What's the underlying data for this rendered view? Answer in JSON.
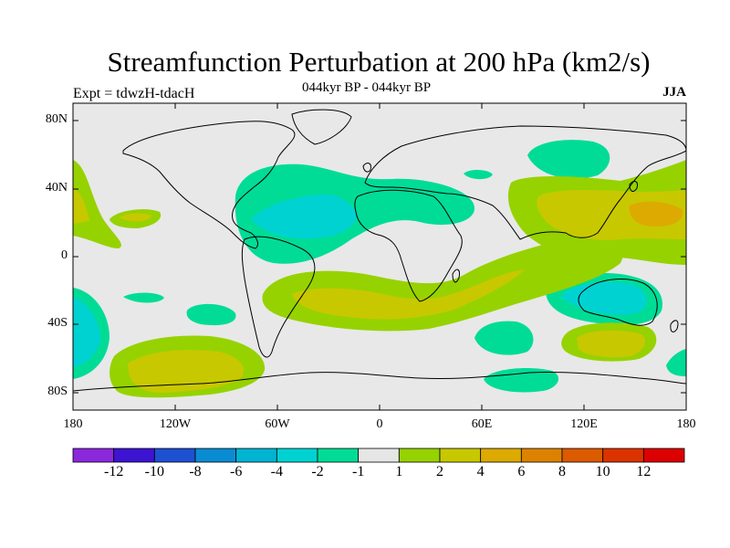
{
  "title": "Streamfunction Perturbation at 200 hPa (km2/s)",
  "subtitle": "044kyr BP - 044kyr BP",
  "experiment": "Expt = tdwzH-tdacH",
  "season": "JJA",
  "colors": {
    "land_bg": "#e8e8e8",
    "neg1": "#00dc96",
    "neg2": "#00d2d2",
    "pos1": "#96d200",
    "pos2": "#c8c800",
    "pos3": "#dcaa00"
  },
  "map": {
    "lat_ticks": [
      "80N",
      "40N",
      "0",
      "40S",
      "80S"
    ],
    "lon_ticks": [
      "180",
      "120W",
      "60W",
      "0",
      "60E",
      "120E",
      "180"
    ]
  },
  "colorbar": {
    "colors": [
      "#8c28dc",
      "#3c14d2",
      "#1e50d2",
      "#0a8cd2",
      "#00b4d2",
      "#00d2d2",
      "#00dc96",
      "#e6e6e6",
      "#96d200",
      "#c8c800",
      "#dcaa00",
      "#dc8200",
      "#dc5a00",
      "#dc3200",
      "#dc0000"
    ],
    "labels": [
      "-12",
      "-10",
      "-8",
      "-6",
      "-4",
      "-2",
      "-1",
      "1",
      "2",
      "4",
      "6",
      "8",
      "10",
      "12"
    ]
  }
}
